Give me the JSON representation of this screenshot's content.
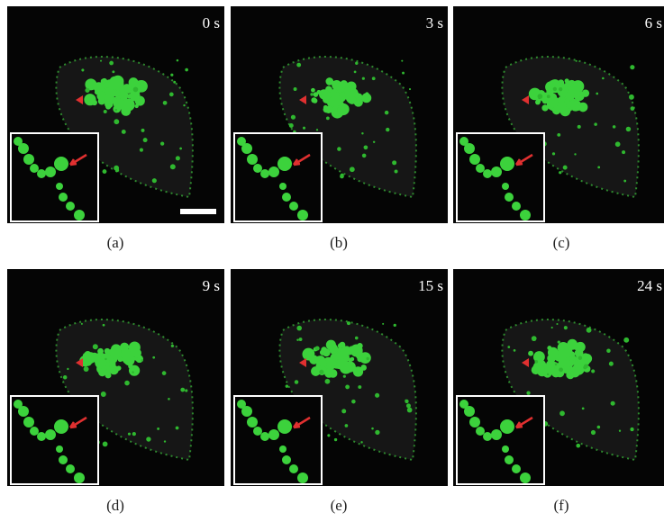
{
  "panels": [
    {
      "time": "0 s",
      "label": "(a)"
    },
    {
      "time": "3 s",
      "label": "(b)"
    },
    {
      "time": "6 s",
      "label": "(c)"
    },
    {
      "time": "9 s",
      "label": "(d)"
    },
    {
      "time": "15 s",
      "label": "(e)"
    },
    {
      "time": "24 s",
      "label": "(f)"
    }
  ]
}
